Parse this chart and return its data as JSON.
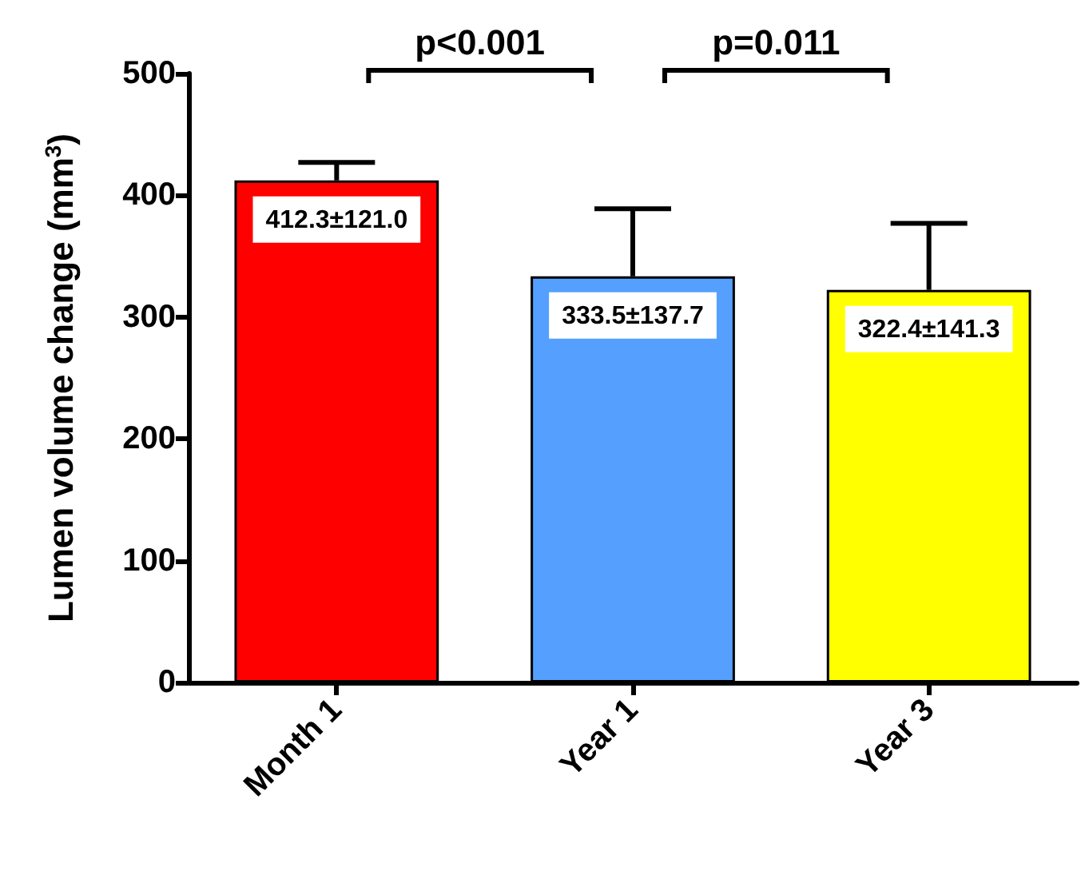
{
  "chart_data": {
    "type": "bar",
    "ylabel": "Lumen volume change (mm$^{3}$)",
    "categories": [
      "Month 1",
      "Year 1",
      "Year 3"
    ],
    "values": [
      412.3,
      333.5,
      322.4
    ],
    "colors": [
      "#ff0000",
      "#55a0ff",
      "#ffff00"
    ],
    "value_labels": [
      "412.3±121.0",
      "333.5±137.7",
      "322.4±141.3"
    ],
    "errors": [
      [
        412.3,
        427
      ],
      [
        333.5,
        389
      ],
      [
        322.4,
        377
      ]
    ],
    "ylim": [
      0,
      500
    ],
    "yticks": [
      0,
      100,
      200,
      300,
      400,
      500
    ],
    "annotations": [
      "p<0.001",
      "p=0.011"
    ],
    "grid": false
  }
}
